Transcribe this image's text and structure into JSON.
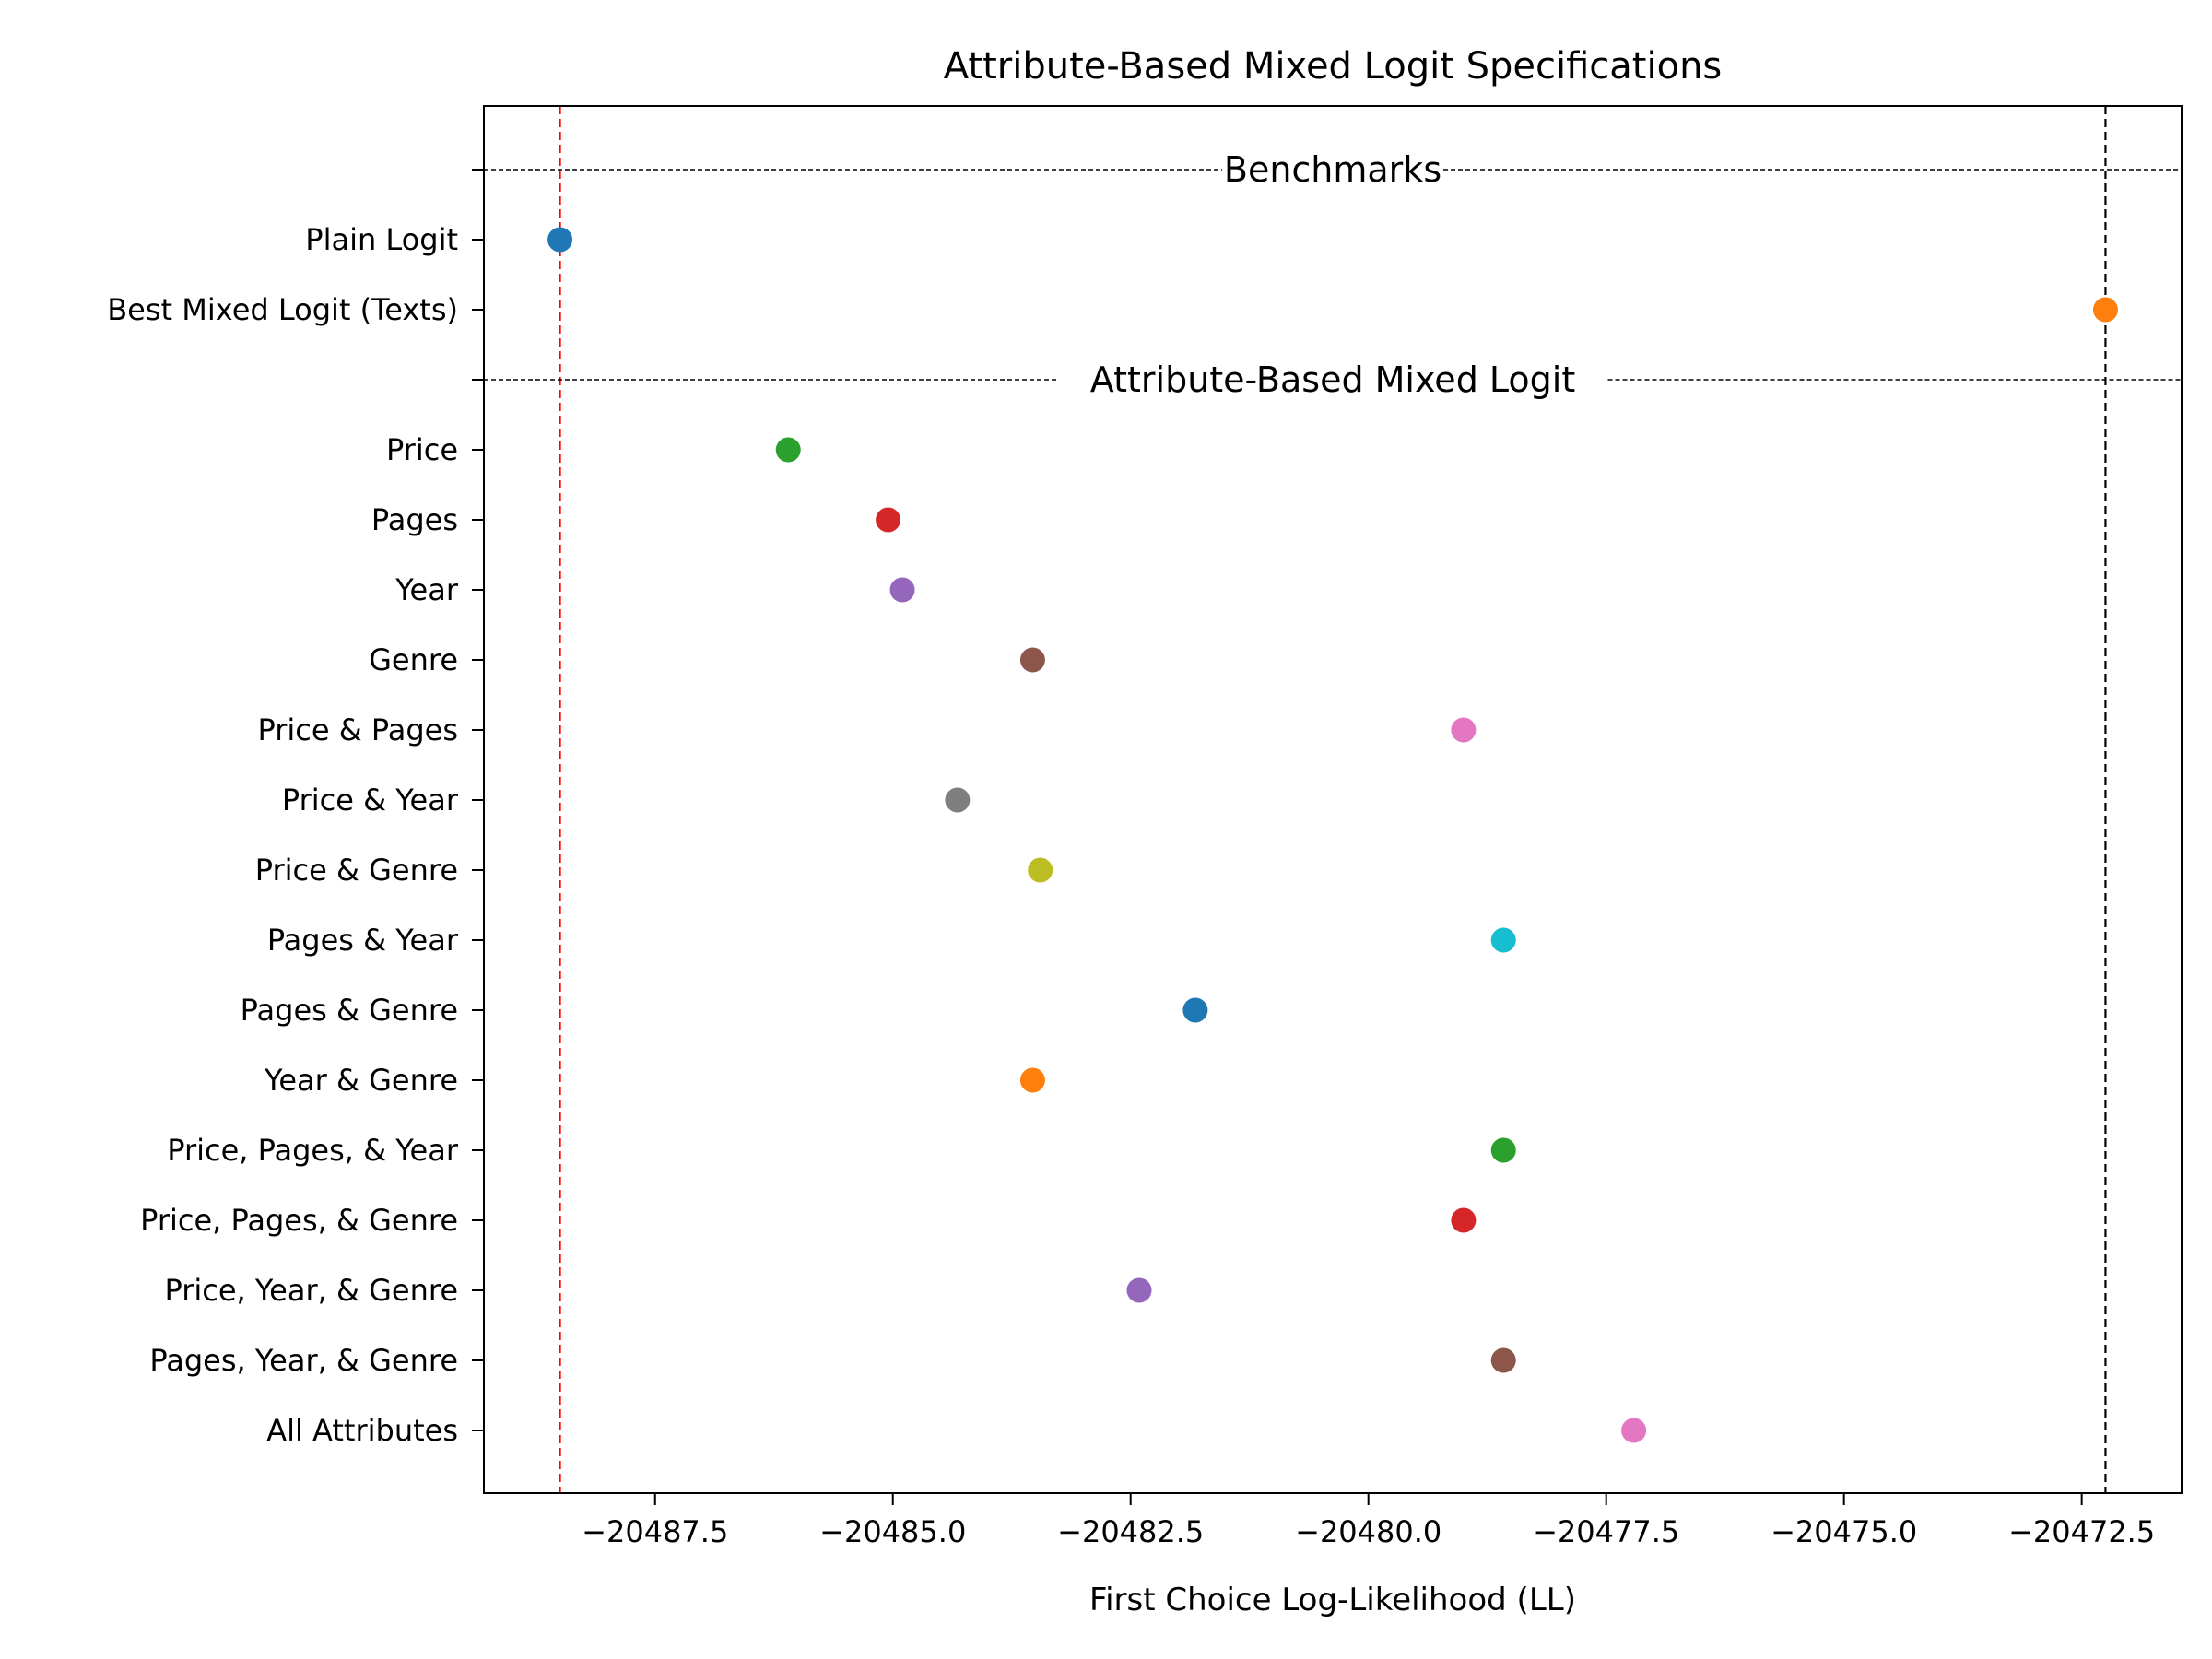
{
  "chart_data": {
    "type": "scatter",
    "title": "Attribute-Based Mixed Logit Specifications",
    "xlabel": "First Choice Log-Likelihood (LL)",
    "ylabel": "",
    "xlim": [
      -20489.3,
      -20471.45
    ],
    "xticks": [
      -20487.5,
      -20485.0,
      -20482.5,
      -20480.0,
      -20477.5,
      -20475.0,
      -20472.5
    ],
    "xtick_labels": [
      "−20487.5",
      "−20485.0",
      "−20482.5",
      "−20480.0",
      "−20477.5",
      "−20475.0",
      "−20472.5"
    ],
    "grid": false,
    "legend": "none",
    "reference_lines": [
      {
        "name": "plain-logit-ll",
        "x": -20488.5,
        "color": "#ff0000",
        "style": "dashed"
      },
      {
        "name": "best-mixed-logit-ll",
        "x": -20472.25,
        "color": "#000000",
        "style": "dashed"
      }
    ],
    "sections": [
      {
        "header": "Benchmarks",
        "points": [
          {
            "label": "Plain Logit",
            "x": -20488.5,
            "color": "#1f77b4"
          },
          {
            "label": "Best Mixed Logit (Texts)",
            "x": -20472.25,
            "color": "#ff7f0e"
          }
        ]
      },
      {
        "header": "Attribute-Based Mixed Logit",
        "points": [
          {
            "label": "Price",
            "x": -20486.1,
            "color": "#2ca02c"
          },
          {
            "label": "Pages",
            "x": -20485.05,
            "color": "#d62728"
          },
          {
            "label": "Year",
            "x": -20484.9,
            "color": "#9467bd"
          },
          {
            "label": "Genre",
            "x": -20483.53,
            "color": "#8c564b"
          },
          {
            "label": "Price & Pages",
            "x": -20479.0,
            "color": "#e377c2"
          },
          {
            "label": "Price & Year",
            "x": -20484.32,
            "color": "#7f7f7f"
          },
          {
            "label": "Price & Genre",
            "x": -20483.45,
            "color": "#bcbd22"
          },
          {
            "label": "Pages & Year",
            "x": -20478.58,
            "color": "#17becf"
          },
          {
            "label": "Pages & Genre",
            "x": -20481.82,
            "color": "#1f77b4"
          },
          {
            "label": "Year & Genre",
            "x": -20483.53,
            "color": "#ff7f0e"
          },
          {
            "label": "Price, Pages, & Year",
            "x": -20478.58,
            "color": "#2ca02c"
          },
          {
            "label": "Price, Pages, & Genre",
            "x": -20479.0,
            "color": "#d62728"
          },
          {
            "label": "Price, Year, & Genre",
            "x": -20482.41,
            "color": "#9467bd"
          },
          {
            "label": "Pages, Year, & Genre",
            "x": -20478.58,
            "color": "#8c564b"
          },
          {
            "label": "All Attributes",
            "x": -20477.21,
            "color": "#e377c2"
          }
        ]
      }
    ]
  }
}
